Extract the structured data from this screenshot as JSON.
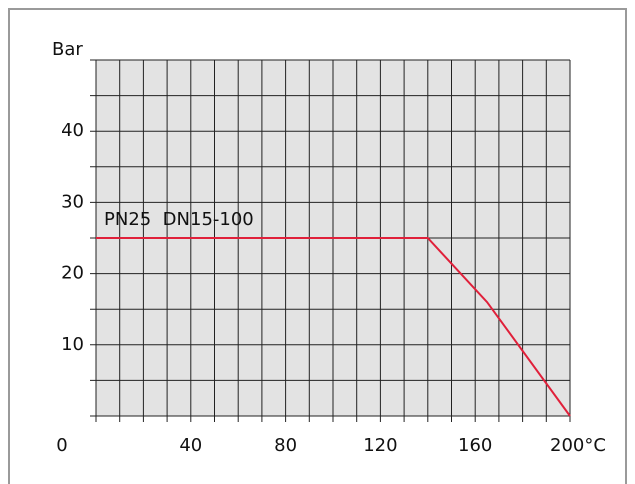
{
  "chart_data": {
    "type": "line",
    "y_label": "Bar",
    "annotation": "PN25  DN15-100",
    "x": [
      0,
      140,
      165,
      200
    ],
    "series": [
      {
        "color": "#e0203a",
        "values": [
          25,
          25,
          16,
          0
        ]
      }
    ],
    "xlim": [
      0,
      200
    ],
    "ylim": [
      0,
      50
    ],
    "xticks": [
      0,
      40,
      80,
      120,
      160,
      {
        "value": 200,
        "label": "200°C"
      }
    ],
    "yticks": [
      10,
      20,
      30,
      40
    ],
    "xgrid": [
      0,
      10,
      20,
      30,
      40,
      50,
      60,
      70,
      80,
      90,
      100,
      110,
      120,
      130,
      140,
      150,
      160,
      170,
      180,
      190,
      200
    ],
    "ygrid": [
      0,
      5,
      10,
      15,
      20,
      25,
      30,
      35,
      40,
      45,
      50
    ],
    "plot_background": "#e3e3e3"
  }
}
